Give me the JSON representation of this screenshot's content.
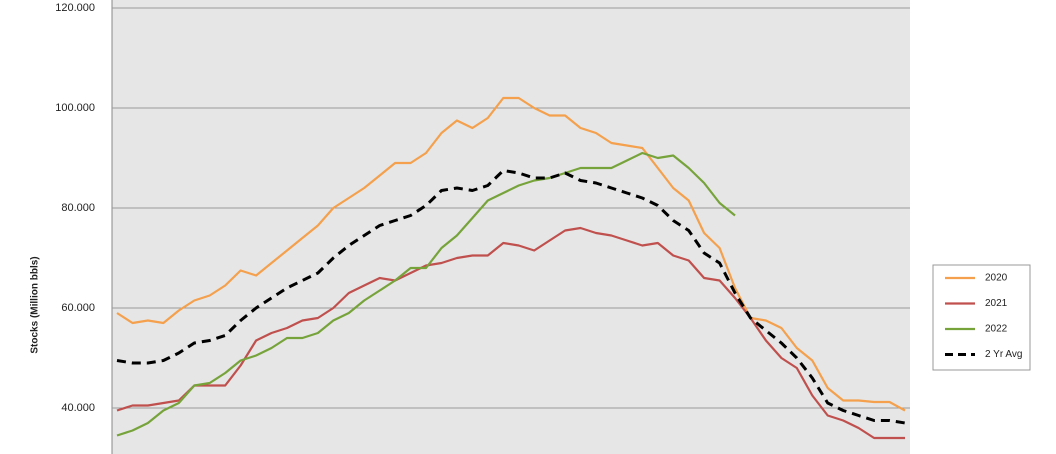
{
  "chart_data": {
    "type": "line",
    "y_label": "Stocks (Million bbls)",
    "categories": [
      null,
      null,
      null,
      null,
      null,
      null,
      null,
      null,
      null,
      null,
      null,
      null,
      null,
      null,
      null,
      null,
      null,
      null,
      null,
      null,
      null,
      null,
      null,
      null,
      null,
      null,
      null,
      null,
      null,
      null,
      null,
      null,
      null,
      null,
      null,
      null,
      null,
      null,
      null,
      null,
      null,
      null,
      null,
      null,
      null,
      null,
      null,
      null,
      null,
      null,
      null,
      null
    ],
    "ylim": [
      30.8,
      120
    ],
    "yticks": [
      {
        "value": 40,
        "label": "40.000"
      },
      {
        "value": 60,
        "label": "60.000"
      },
      {
        "value": 80,
        "label": "80.000"
      },
      {
        "value": 100,
        "label": "100.000"
      },
      {
        "value": 120,
        "label": "120.000"
      }
    ],
    "grid": true,
    "legend": "right",
    "series": [
      {
        "name": "2020",
        "color": "#f4a04c",
        "dash": false,
        "values": [
          59,
          57,
          57.5,
          57,
          59.5,
          61.5,
          62.5,
          64.5,
          67.5,
          66.5,
          69,
          71.5,
          74,
          76.5,
          80,
          82,
          84,
          86.5,
          89,
          89,
          91,
          95,
          97.5,
          96,
          98,
          102,
          102,
          100,
          98.5,
          98.5,
          96,
          95,
          93,
          92.5,
          92,
          88,
          84,
          81.5,
          75,
          72,
          64,
          58,
          57.5,
          56,
          52,
          49.5,
          44,
          41.5,
          41.5,
          41.2,
          41.2,
          39.5
        ]
      },
      {
        "name": "2021",
        "color": "#c0504d",
        "dash": false,
        "values": [
          39.5,
          40.5,
          40.5,
          41,
          41.5,
          44.5,
          44.5,
          44.5,
          48.5,
          53.5,
          55,
          56,
          57.5,
          58,
          60,
          63,
          64.5,
          66,
          65.5,
          67,
          68.5,
          69,
          70,
          70.5,
          70.5,
          73,
          72.5,
          71.5,
          73.5,
          75.5,
          76,
          75,
          74.5,
          73.5,
          72.5,
          73,
          70.5,
          69.5,
          66,
          65.5,
          62,
          58,
          53.5,
          50,
          48,
          42.5,
          38.5,
          37.5,
          36,
          34,
          34,
          34
        ]
      },
      {
        "name": "2022",
        "color": "#77a33b",
        "dash": false,
        "values": [
          34.5,
          35.5,
          37,
          39.5,
          41,
          44.5,
          45,
          47,
          49.5,
          50.5,
          52,
          54,
          54,
          55,
          57.5,
          59,
          61.5,
          63.5,
          65.5,
          68,
          68,
          72,
          74.5,
          78,
          81.5,
          83,
          84.5,
          85.5,
          86,
          87,
          88,
          88,
          88,
          89.5,
          91,
          90,
          90.5,
          88,
          85,
          81,
          78.5,
          null,
          null,
          null,
          null,
          null,
          null,
          null,
          null,
          null,
          null,
          null
        ]
      },
      {
        "name": "2 Yr Avg",
        "color": "#000000",
        "dash": true,
        "values": [
          49.5,
          49,
          49,
          49.5,
          51,
          53,
          53.5,
          54.5,
          57.5,
          60,
          62,
          64,
          65.5,
          67,
          70,
          72.5,
          74.5,
          76.5,
          77.5,
          78.5,
          80.5,
          83.5,
          84,
          83.5,
          84.5,
          87.5,
          87,
          86,
          86,
          87,
          85.5,
          85,
          84,
          83,
          82,
          80.5,
          77.5,
          75.5,
          71,
          69,
          63,
          58,
          55.5,
          53,
          50,
          46,
          41,
          39.5,
          38.5,
          37.5,
          37.5,
          37
        ]
      }
    ]
  }
}
